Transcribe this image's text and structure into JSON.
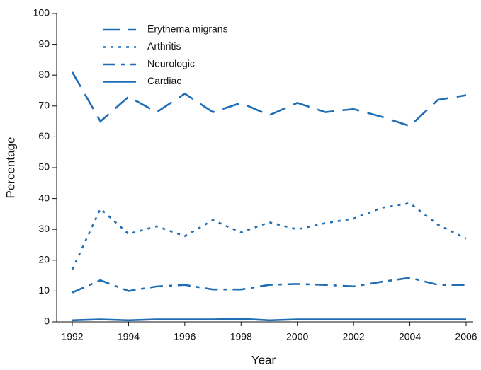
{
  "chart_data": {
    "type": "line",
    "x_label": "Year",
    "y_label": "Percentage",
    "x": [
      1992,
      1993,
      1994,
      1995,
      1996,
      1997,
      1998,
      1999,
      2000,
      2001,
      2002,
      2003,
      2004,
      2005,
      2006
    ],
    "xlim": [
      1992,
      2006
    ],
    "xticks": [
      1992,
      1994,
      1996,
      1998,
      2000,
      2002,
      2004,
      2006
    ],
    "ylim": [
      0,
      100
    ],
    "yticks": [
      0,
      10,
      20,
      30,
      40,
      50,
      60,
      70,
      80,
      90,
      100
    ],
    "grid": false,
    "legend": "upper left",
    "series": [
      {
        "name": "Erythema migrans",
        "color": "#1f6db5",
        "style": "dashed",
        "values": [
          81,
          65,
          73,
          68,
          74,
          68,
          71,
          67,
          71,
          68,
          69,
          66.5,
          63.5,
          72,
          73.5
        ]
      },
      {
        "name": "Arthritis",
        "color": "#1f6db5",
        "style": "dotted",
        "values": [
          17,
          36.7,
          28.5,
          31,
          27.8,
          33,
          29,
          32.3,
          30,
          32,
          33.5,
          37,
          38.5,
          31.5,
          27
        ]
      },
      {
        "name": "Neurologic",
        "color": "#1f6db5",
        "style": "dashdot",
        "values": [
          9.5,
          13.5,
          10,
          11.5,
          12,
          10.5,
          10.5,
          12,
          12.3,
          12,
          11.5,
          13,
          14.3,
          12,
          12
        ]
      },
      {
        "name": "Cardiac",
        "color": "#1f6db5",
        "style": "solid",
        "values": [
          0.5,
          0.8,
          0.5,
          0.8,
          0.8,
          0.8,
          1,
          0.5,
          0.8,
          0.8,
          0.8,
          0.8,
          0.8,
          0.8,
          0.8
        ]
      }
    ]
  }
}
